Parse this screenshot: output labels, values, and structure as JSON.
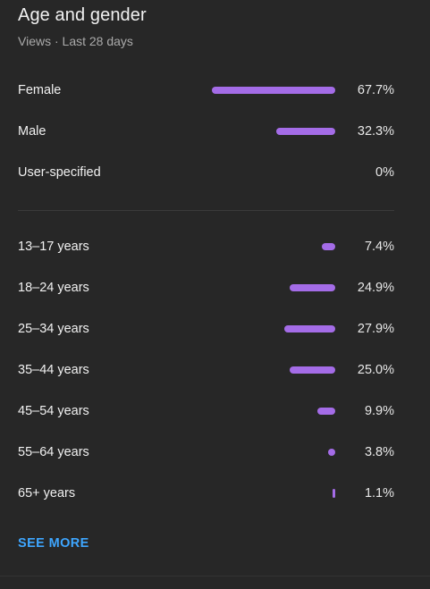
{
  "card": {
    "title": "Age and gender",
    "subtitle": "Views · Last 28 days",
    "see_more_label": "SEE MORE"
  },
  "gender": [
    {
      "label": "Female",
      "value": 67.7,
      "display": "67.7%"
    },
    {
      "label": "Male",
      "value": 32.3,
      "display": "32.3%"
    },
    {
      "label": "User-specified",
      "value": 0,
      "display": "0%"
    }
  ],
  "age": [
    {
      "label": "13–17 years",
      "value": 7.4,
      "display": "7.4%"
    },
    {
      "label": "18–24 years",
      "value": 24.9,
      "display": "24.9%"
    },
    {
      "label": "25–34 years",
      "value": 27.9,
      "display": "27.9%"
    },
    {
      "label": "35–44 years",
      "value": 25.0,
      "display": "25.0%"
    },
    {
      "label": "45–54 years",
      "value": 9.9,
      "display": "9.9%"
    },
    {
      "label": "55–64 years",
      "value": 3.8,
      "display": "3.8%"
    },
    {
      "label": "65+ years",
      "value": 1.1,
      "display": "1.1%"
    }
  ],
  "colors": {
    "bar": "#a46ce7",
    "link": "#3ea6ff",
    "background": "#272727"
  }
}
